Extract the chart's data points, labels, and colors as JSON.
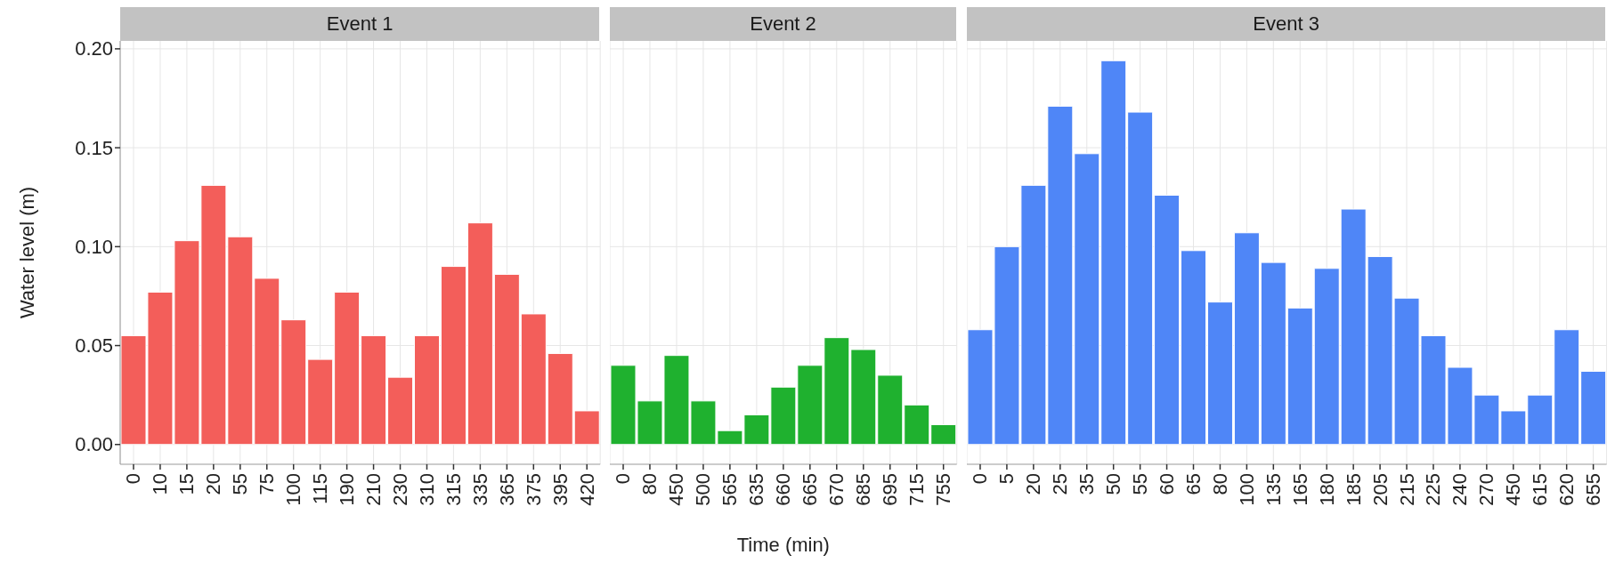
{
  "chart_data": [
    {
      "type": "bar",
      "title": "Event 1",
      "ylabel": "Water level (m)",
      "categories": [
        "0",
        "10",
        "15",
        "20",
        "55",
        "75",
        "100",
        "115",
        "190",
        "210",
        "230",
        "310",
        "315",
        "335",
        "365",
        "375",
        "395",
        "420"
      ],
      "values": [
        0.055,
        0.077,
        0.103,
        0.131,
        0.105,
        0.084,
        0.063,
        0.043,
        0.077,
        0.055,
        0.034,
        0.055,
        0.09,
        0.112,
        0.086,
        0.066,
        0.046,
        0.017
      ],
      "color": "#f35e5a",
      "ylim": [
        -0.01,
        0.204
      ],
      "yticks": [
        {
          "value": 0,
          "label": "0.00"
        },
        {
          "value": 0.05,
          "label": "0.05"
        },
        {
          "value": 0.1,
          "label": "0.10"
        },
        {
          "value": 0.15,
          "label": "0.15"
        },
        {
          "value": 0.2,
          "label": "0.20"
        }
      ],
      "grid": true
    },
    {
      "type": "bar",
      "title": "Event 2",
      "xlabel": "Time (min)",
      "categories": [
        "0",
        "80",
        "450",
        "500",
        "565",
        "635",
        "660",
        "665",
        "670",
        "685",
        "695",
        "715",
        "755"
      ],
      "values": [
        0.04,
        0.022,
        0.045,
        0.022,
        0.007,
        0.015,
        0.029,
        0.04,
        0.054,
        0.048,
        0.035,
        0.02,
        0.01
      ],
      "color": "#1fb12f",
      "ylim": [
        -0.01,
        0.204
      ],
      "yticks": [
        0,
        0.05,
        0.1,
        0.15,
        0.2
      ],
      "grid": true,
      "tick_labels": "x"
    },
    {
      "type": "bar",
      "title": "Event 3",
      "categories": [
        "0",
        "5",
        "20",
        "25",
        "35",
        "50",
        "55",
        "60",
        "65",
        "80",
        "100",
        "135",
        "165",
        "180",
        "185",
        "205",
        "215",
        "225",
        "240",
        "270",
        "450",
        "615",
        "620",
        "655"
      ],
      "values": [
        0.058,
        0.1,
        0.131,
        0.171,
        0.147,
        0.194,
        0.168,
        0.126,
        0.098,
        0.072,
        0.107,
        0.092,
        0.069,
        0.089,
        0.119,
        0.095,
        0.074,
        0.055,
        0.039,
        0.025,
        0.017,
        0.025,
        0.058,
        0.037
      ],
      "color": "#4f86f7",
      "ylim": [
        -0.01,
        0.204
      ],
      "yticks": [
        0,
        0.05,
        0.1,
        0.15,
        0.2
      ],
      "grid": true,
      "tick_labels": "x"
    }
  ]
}
